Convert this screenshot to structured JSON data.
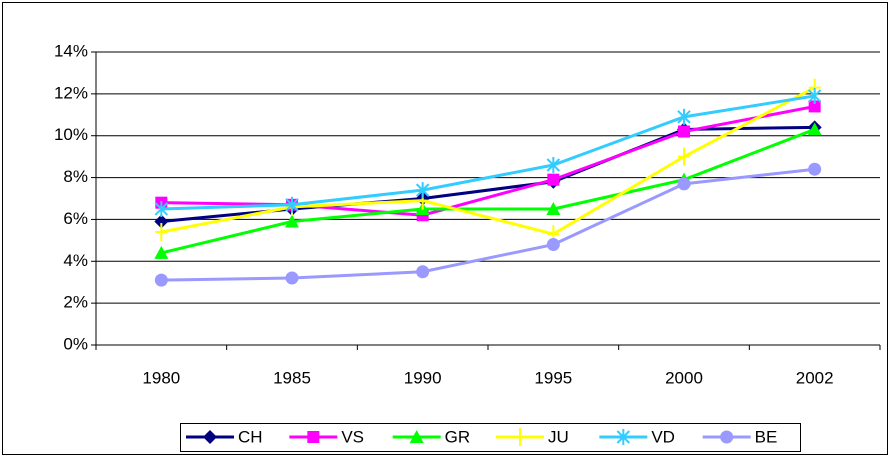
{
  "chart_data": {
    "type": "line",
    "categories": [
      "1980",
      "1985",
      "1990",
      "1995",
      "2000",
      "2002"
    ],
    "series": [
      {
        "name": "CH",
        "color": "#000080",
        "values": [
          5.9,
          6.5,
          7.0,
          7.8,
          10.3,
          10.4
        ]
      },
      {
        "name": "VS",
        "color": "#FF00FF",
        "values": [
          6.8,
          6.7,
          6.2,
          7.9,
          10.2,
          11.4
        ]
      },
      {
        "name": "GR",
        "color": "#00FF00",
        "values": [
          4.4,
          5.9,
          6.5,
          6.5,
          7.9,
          10.3
        ]
      },
      {
        "name": "JU",
        "color": "#FFFF00",
        "values": [
          5.4,
          6.6,
          6.9,
          5.3,
          9.0,
          12.3
        ]
      },
      {
        "name": "VD",
        "color": "#33CCFF",
        "values": [
          6.5,
          6.7,
          7.4,
          8.6,
          10.9,
          11.9
        ]
      },
      {
        "name": "BE",
        "color": "#9999FF",
        "values": [
          3.1,
          3.2,
          3.5,
          4.8,
          7.7,
          8.4
        ]
      }
    ],
    "ylim": [
      0,
      14
    ],
    "yticks": [
      {
        "value": 0,
        "label": "0%"
      },
      {
        "value": 2,
        "label": "2%"
      },
      {
        "value": 4,
        "label": "4%"
      },
      {
        "value": 6,
        "label": "6%"
      },
      {
        "value": 8,
        "label": "8%"
      },
      {
        "value": 10,
        "label": "10%"
      },
      {
        "value": 12,
        "label": "12%"
      },
      {
        "value": 14,
        "label": "14%"
      }
    ],
    "grid": true,
    "legend": "bottom"
  }
}
